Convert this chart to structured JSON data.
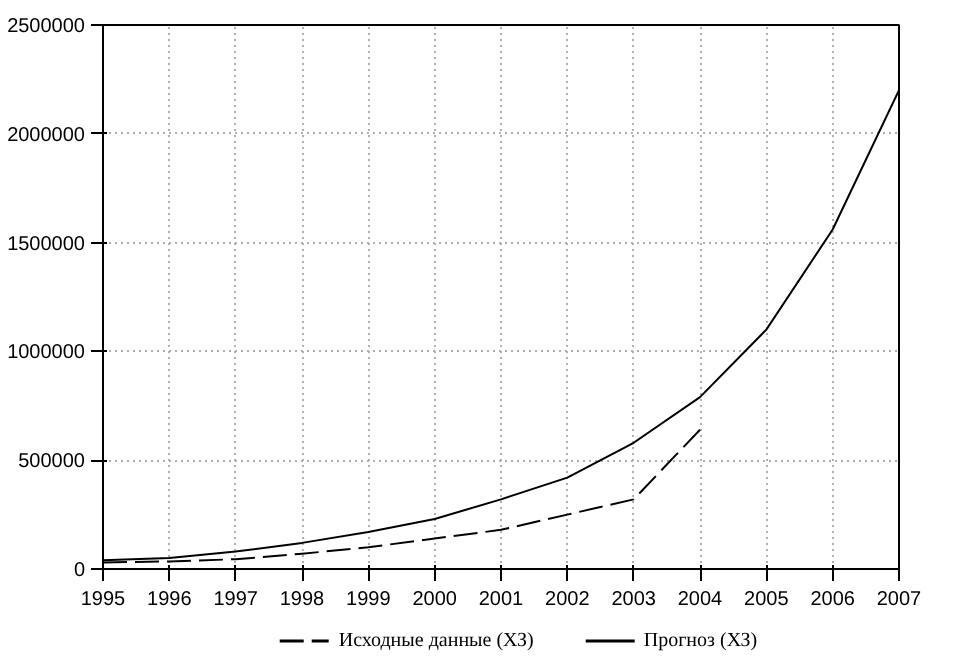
{
  "chart_data": {
    "type": "line",
    "x": [
      1995,
      1996,
      1997,
      1998,
      1999,
      2000,
      2001,
      2002,
      2003,
      2004,
      2005,
      2006,
      2007
    ],
    "series": [
      {
        "name": "Исходные данные (ХЗ)",
        "color": "#000000",
        "line_style": "dashed",
        "x": [
          1995,
          1996,
          1997,
          1998,
          1999,
          2000,
          2001,
          2002,
          2003,
          2004
        ],
        "values": [
          30000,
          35000,
          45000,
          70000,
          100000,
          140000,
          180000,
          250000,
          320000,
          640000
        ]
      },
      {
        "name": "Прогноз (ХЗ)",
        "color": "#000000",
        "line_style": "solid",
        "values": [
          40000,
          50000,
          80000,
          120000,
          170000,
          230000,
          320000,
          420000,
          580000,
          790000,
          1100000,
          1560000,
          2200000
        ]
      }
    ],
    "xlim": [
      1995,
      2007
    ],
    "xticks": [
      1995,
      1996,
      1997,
      1998,
      1999,
      2000,
      2001,
      2002,
      2003,
      2004,
      2005,
      2006,
      2007
    ],
    "ylim": [
      0,
      2500000
    ],
    "yticks": [
      0,
      500000,
      1000000,
      1500000,
      2000000,
      2500000
    ],
    "grid": true,
    "legend": "bottom",
    "marker": "none"
  }
}
